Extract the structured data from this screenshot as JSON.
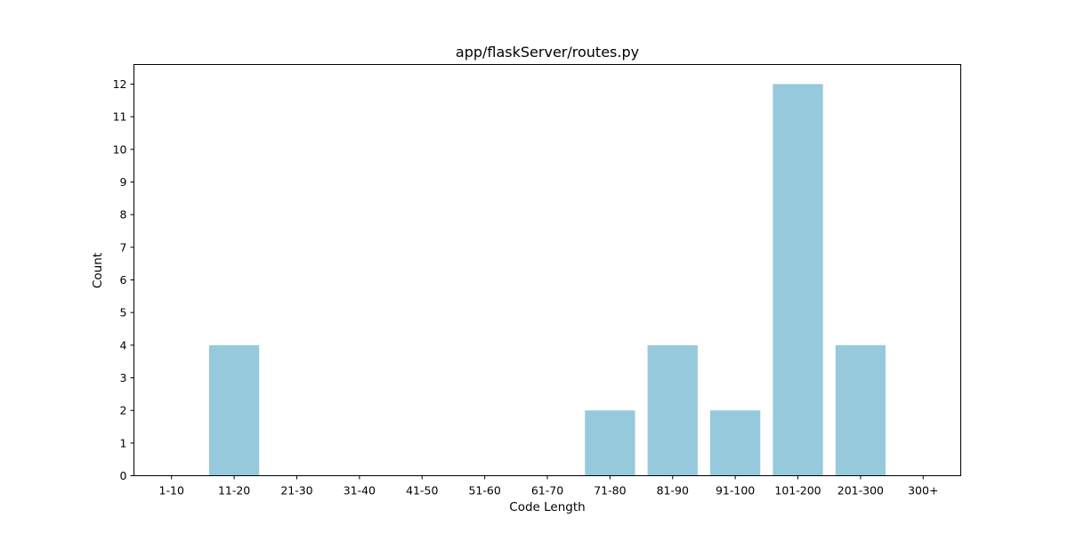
{
  "chart_data": {
    "type": "bar",
    "title": "app/flaskServer/routes.py",
    "xlabel": "Code Length",
    "ylabel": "Count",
    "categories": [
      "1-10",
      "11-20",
      "21-30",
      "31-40",
      "41-50",
      "51-60",
      "61-70",
      "71-80",
      "81-90",
      "91-100",
      "101-200",
      "201-300",
      "300+"
    ],
    "values": [
      0,
      4,
      0,
      0,
      0,
      0,
      0,
      2,
      4,
      2,
      12,
      4,
      0
    ],
    "ylim": [
      0,
      12.6
    ],
    "yticks": [
      0,
      1,
      2,
      3,
      4,
      5,
      6,
      7,
      8,
      9,
      10,
      11,
      12
    ],
    "grid": false,
    "bar_color": "#96c9dc"
  }
}
